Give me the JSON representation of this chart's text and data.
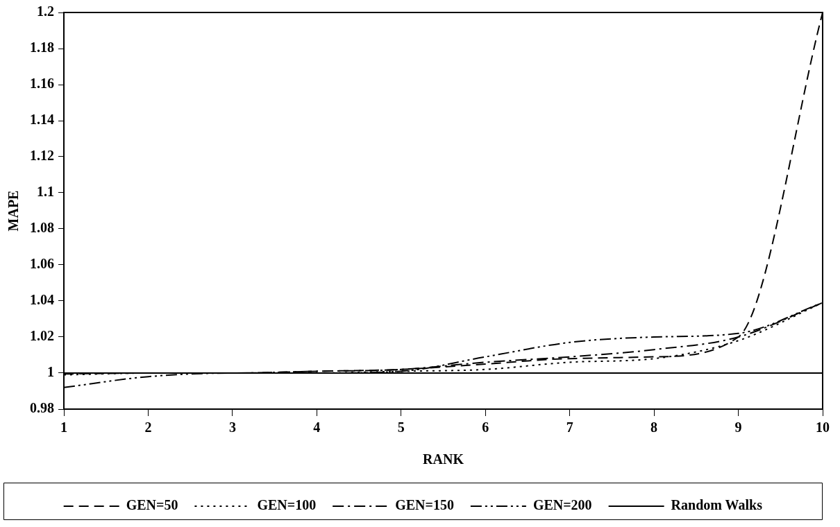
{
  "chart_data": {
    "type": "line",
    "xlabel": "RANK",
    "ylabel": "MAPE",
    "x": [
      1,
      2,
      3,
      4,
      5,
      6,
      7,
      8,
      9,
      10
    ],
    "series": [
      {
        "name": "GEN=50",
        "color": "#000000",
        "line_style": "dashed",
        "values": [
          0.9995,
          1,
          1,
          1.001,
          1.002,
          1.005,
          1.008,
          1.009,
          1.02,
          1.2
        ]
      },
      {
        "name": "GEN=100",
        "color": "#000000",
        "line_style": "dotted",
        "values": [
          0.999,
          1,
          1,
          1,
          1.001,
          1.002,
          1.006,
          1.008,
          1.018,
          1.039
        ]
      },
      {
        "name": "GEN=150",
        "color": "#000000",
        "line_style": "dashdot",
        "values": [
          1,
          1,
          1,
          1.001,
          1.002,
          1.006,
          1.009,
          1.013,
          1.02,
          1.039
        ]
      },
      {
        "name": "GEN=200",
        "color": "#000000",
        "line_style": "dashdotdot",
        "values": [
          0.992,
          0.998,
          1,
          1,
          1.001,
          1.009,
          1.017,
          1.02,
          1.022,
          1.039
        ]
      },
      {
        "name": "Random Walks",
        "color": "#000000",
        "line_style": "solid",
        "values": [
          1,
          1,
          1,
          1,
          1,
          1,
          1,
          1,
          1,
          1
        ]
      }
    ],
    "xlim": [
      1,
      10
    ],
    "xticks": [
      1,
      2,
      3,
      4,
      5,
      6,
      7,
      8,
      9,
      10
    ],
    "ylim": [
      0.98,
      1.2
    ],
    "yticks": [
      0.98,
      1,
      1.02,
      1.04,
      1.06,
      1.08,
      1.1,
      1.12,
      1.14,
      1.16,
      1.18,
      1.2
    ],
    "grid": false,
    "legend": "bottom",
    "marker": "none"
  }
}
